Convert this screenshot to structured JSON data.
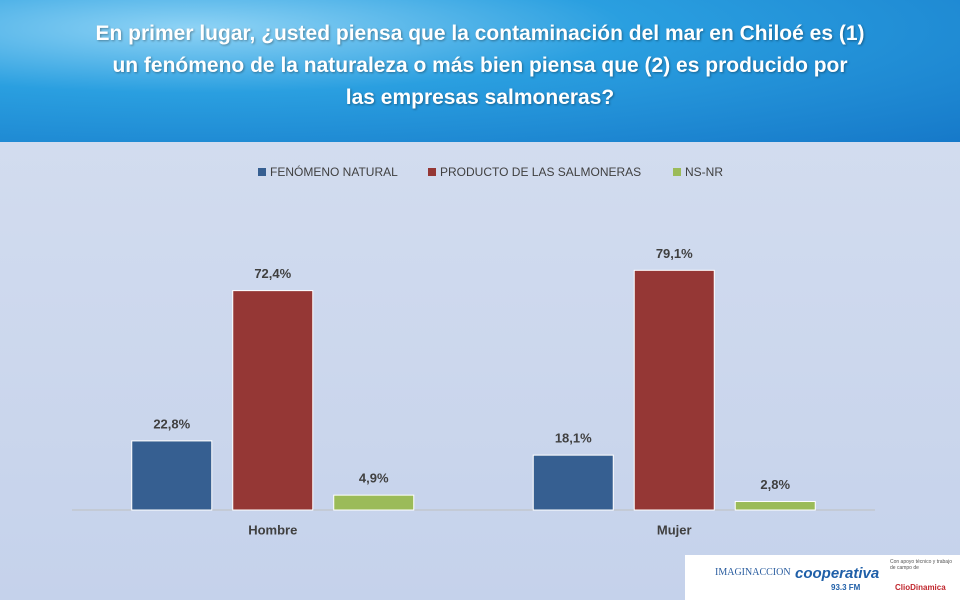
{
  "chart_data": {
    "type": "bar",
    "title": "En primer lugar, ¿usted piensa que la contaminación del mar en Chiloé es (1) un fenómeno de la naturaleza o más bien piensa que (2) es producido por las empresas salmoneras?",
    "categories": [
      "Hombre",
      "Mujer"
    ],
    "series": [
      {
        "name": "FENÓMENO NATURAL",
        "color": "#365f91",
        "values": [
          22.8,
          18.1
        ],
        "value_labels": [
          "22,8%",
          "18,1%"
        ]
      },
      {
        "name": "PRODUCTO DE LAS SALMONERAS",
        "color": "#953735",
        "values": [
          72.4,
          79.1
        ],
        "value_labels": [
          "72,4%",
          "79,1%"
        ]
      },
      {
        "name": "NS-NR",
        "color": "#9bbb59",
        "values": [
          4.9,
          2.8
        ],
        "value_labels": [
          "4,9%",
          "2,8%"
        ]
      }
    ],
    "legend": "top"
  },
  "logos": {
    "imaginaccion": "IMAGINACCION",
    "cooperativa": "cooperativa",
    "frequency": "93.3 FM",
    "support": "Con apoyo técnico y trabajo de campo de",
    "cliodinamica": "ClioDinamica"
  }
}
